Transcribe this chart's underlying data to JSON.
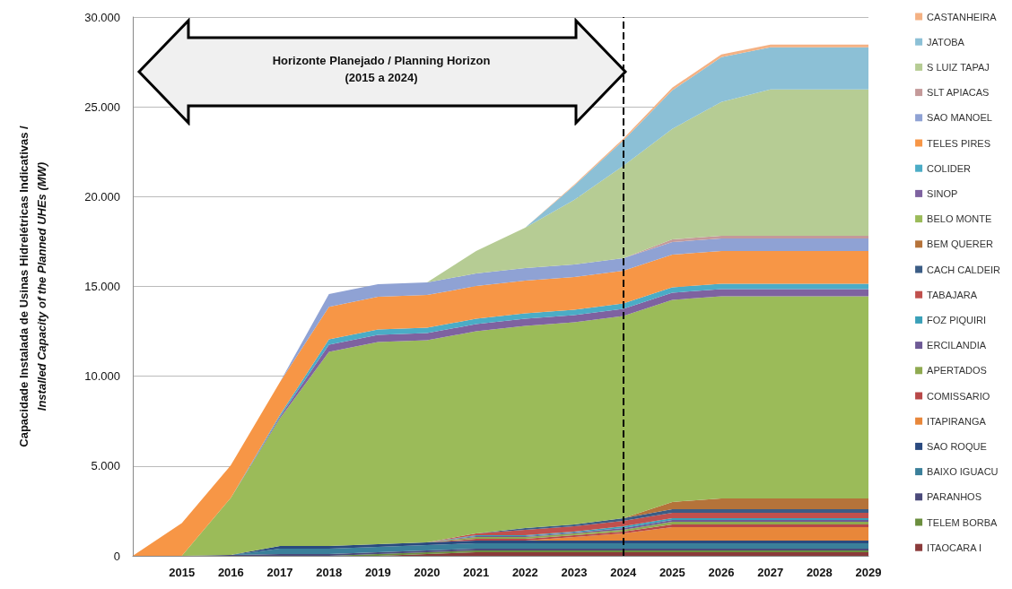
{
  "chart_data": {
    "type": "area",
    "stacked": true,
    "ylabel": "Capacidade Instalada de Usinas Hidrelétricas Indicativas /\nInstalled Capacity of the Planned UHEs (MW)",
    "categories": [
      null,
      "2015",
      "2016",
      "2017",
      "2018",
      "2019",
      "2020",
      "2021",
      "2022",
      "2023",
      "2024",
      "2025",
      "2026",
      "2027",
      "2028",
      "2029"
    ],
    "ylim": [
      0,
      30000
    ],
    "yticks": [
      0,
      {
        "value": 5000,
        "label": "5.000"
      },
      {
        "value": 10000,
        "label": "10.000"
      },
      {
        "value": 15000,
        "label": "15.000"
      },
      {
        "value": 20000,
        "label": "20.000"
      },
      {
        "value": 25000,
        "label": "25.000"
      },
      {
        "value": 30000,
        "label": "30.000"
      }
    ],
    "grid": "y",
    "legend": "right",
    "ref_lines": [
      {
        "axis": "x",
        "value": "2024",
        "color": "#000000",
        "line_style": "dashed"
      }
    ],
    "annotations": [
      "Horizonte Planejado / Planning Horizon\n(2015 a 2024)"
    ],
    "series": [
      {
        "name": "ITAOCARA I",
        "color": "#8b3a3a",
        "values": [
          0,
          0,
          0,
          0,
          0,
          0,
          100,
          200,
          200,
          200,
          200,
          200,
          200,
          200,
          200,
          200
        ]
      },
      {
        "name": "TELEM BORBA",
        "color": "#6b8e3e",
        "values": [
          0,
          0,
          0,
          0,
          0,
          100,
          100,
          100,
          100,
          100,
          100,
          100,
          100,
          100,
          100,
          100
        ]
      },
      {
        "name": "PARANHOS",
        "color": "#4b4a7a",
        "values": [
          0,
          0,
          50,
          100,
          100,
          100,
          100,
          100,
          100,
          100,
          100,
          100,
          100,
          100,
          100,
          100
        ]
      },
      {
        "name": "BAIXO IGUACU",
        "color": "#3a7f9a",
        "values": [
          0,
          0,
          0,
          300,
          300,
          300,
          300,
          300,
          300,
          300,
          300,
          300,
          300,
          300,
          300,
          300
        ]
      },
      {
        "name": "SAO ROQUE",
        "color": "#2a4a7f",
        "values": [
          0,
          0,
          0,
          150,
          150,
          150,
          150,
          150,
          150,
          150,
          150,
          150,
          150,
          150,
          150,
          150
        ]
      },
      {
        "name": "ITAPIRANGA",
        "color": "#e8873a",
        "values": [
          0,
          0,
          0,
          0,
          0,
          0,
          0,
          0,
          0,
          200,
          400,
          750,
          750,
          750,
          750,
          750
        ]
      },
      {
        "name": "COMISSARIO",
        "color": "#b84848",
        "values": [
          0,
          0,
          0,
          0,
          0,
          0,
          0,
          100,
          100,
          100,
          100,
          150,
          150,
          150,
          150,
          150
        ]
      },
      {
        "name": "APERTADOS",
        "color": "#8faa50",
        "values": [
          0,
          0,
          0,
          0,
          0,
          0,
          0,
          100,
          100,
          100,
          100,
          150,
          150,
          150,
          150,
          150
        ]
      },
      {
        "name": "ERCILANDIA",
        "color": "#6e5a96",
        "values": [
          0,
          0,
          0,
          0,
          0,
          0,
          0,
          50,
          50,
          50,
          100,
          100,
          100,
          100,
          100,
          100
        ]
      },
      {
        "name": "FOZ PIQUIRI",
        "color": "#3aa0b8",
        "values": [
          0,
          0,
          0,
          0,
          0,
          0,
          0,
          50,
          50,
          50,
          100,
          100,
          100,
          100,
          100,
          100
        ]
      },
      {
        "name": "TABAJARA",
        "color": "#c0504d",
        "values": [
          0,
          0,
          0,
          0,
          0,
          0,
          0,
          100,
          300,
          300,
          300,
          300,
          300,
          300,
          300,
          300
        ]
      },
      {
        "name": "CACH CALDEIR",
        "color": "#3b5c85",
        "values": [
          0,
          0,
          0,
          0,
          0,
          0,
          0,
          0,
          100,
          100,
          150,
          200,
          200,
          200,
          200,
          200
        ]
      },
      {
        "name": "BEM QUERER",
        "color": "#b5733a",
        "values": [
          0,
          0,
          0,
          0,
          0,
          0,
          0,
          0,
          0,
          0,
          0,
          400,
          600,
          600,
          600,
          600
        ]
      },
      {
        "name": "BELO MONTE",
        "color": "#9bbb59",
        "values": [
          0,
          0,
          3180,
          7100,
          10800,
          11250,
          11250,
          11250,
          11250,
          11250,
          11250,
          11250,
          11250,
          11250,
          11250,
          11250
        ]
      },
      {
        "name": "SINOP",
        "color": "#7e62a0",
        "values": [
          0,
          0,
          0,
          100,
          400,
          400,
          400,
          400,
          400,
          400,
          400,
          400,
          400,
          400,
          400,
          400
        ]
      },
      {
        "name": "COLIDER",
        "color": "#4bacc6",
        "values": [
          0,
          0,
          0,
          100,
          300,
          300,
          300,
          300,
          300,
          300,
          300,
          300,
          300,
          300,
          300,
          300
        ]
      },
      {
        "name": "TELES PIRES",
        "color": "#f79646",
        "values": [
          0,
          1820,
          1820,
          1820,
          1820,
          1820,
          1820,
          1820,
          1820,
          1820,
          1820,
          1820,
          1820,
          1820,
          1820,
          1820
        ]
      },
      {
        "name": "SAO MANOEL",
        "color": "#8fa2d4",
        "values": [
          0,
          0,
          0,
          0,
          700,
          700,
          700,
          700,
          700,
          700,
          700,
          700,
          700,
          700,
          700,
          700
        ]
      },
      {
        "name": "SLT APIACAS",
        "color": "#c49a9a",
        "values": [
          0,
          0,
          0,
          0,
          0,
          0,
          0,
          0,
          0,
          0,
          0,
          150,
          150,
          150,
          150,
          150
        ]
      },
      {
        "name": "S LUIZ TAPAJ",
        "color": "#b6cc94",
        "values": [
          0,
          0,
          0,
          0,
          0,
          0,
          0,
          1250,
          2250,
          3600,
          5150,
          6150,
          7450,
          8150,
          8150,
          8150
        ]
      },
      {
        "name": "JATOBA",
        "color": "#8cc0d6",
        "values": [
          0,
          0,
          0,
          0,
          0,
          0,
          0,
          0,
          0,
          800,
          1400,
          2150,
          2500,
          2350,
          2350,
          2350
        ]
      },
      {
        "name": "CASTANHEIRA",
        "color": "#f4b183",
        "values": [
          0,
          0,
          0,
          0,
          0,
          0,
          0,
          0,
          0,
          50,
          100,
          150,
          150,
          150,
          150,
          150
        ]
      }
    ]
  }
}
